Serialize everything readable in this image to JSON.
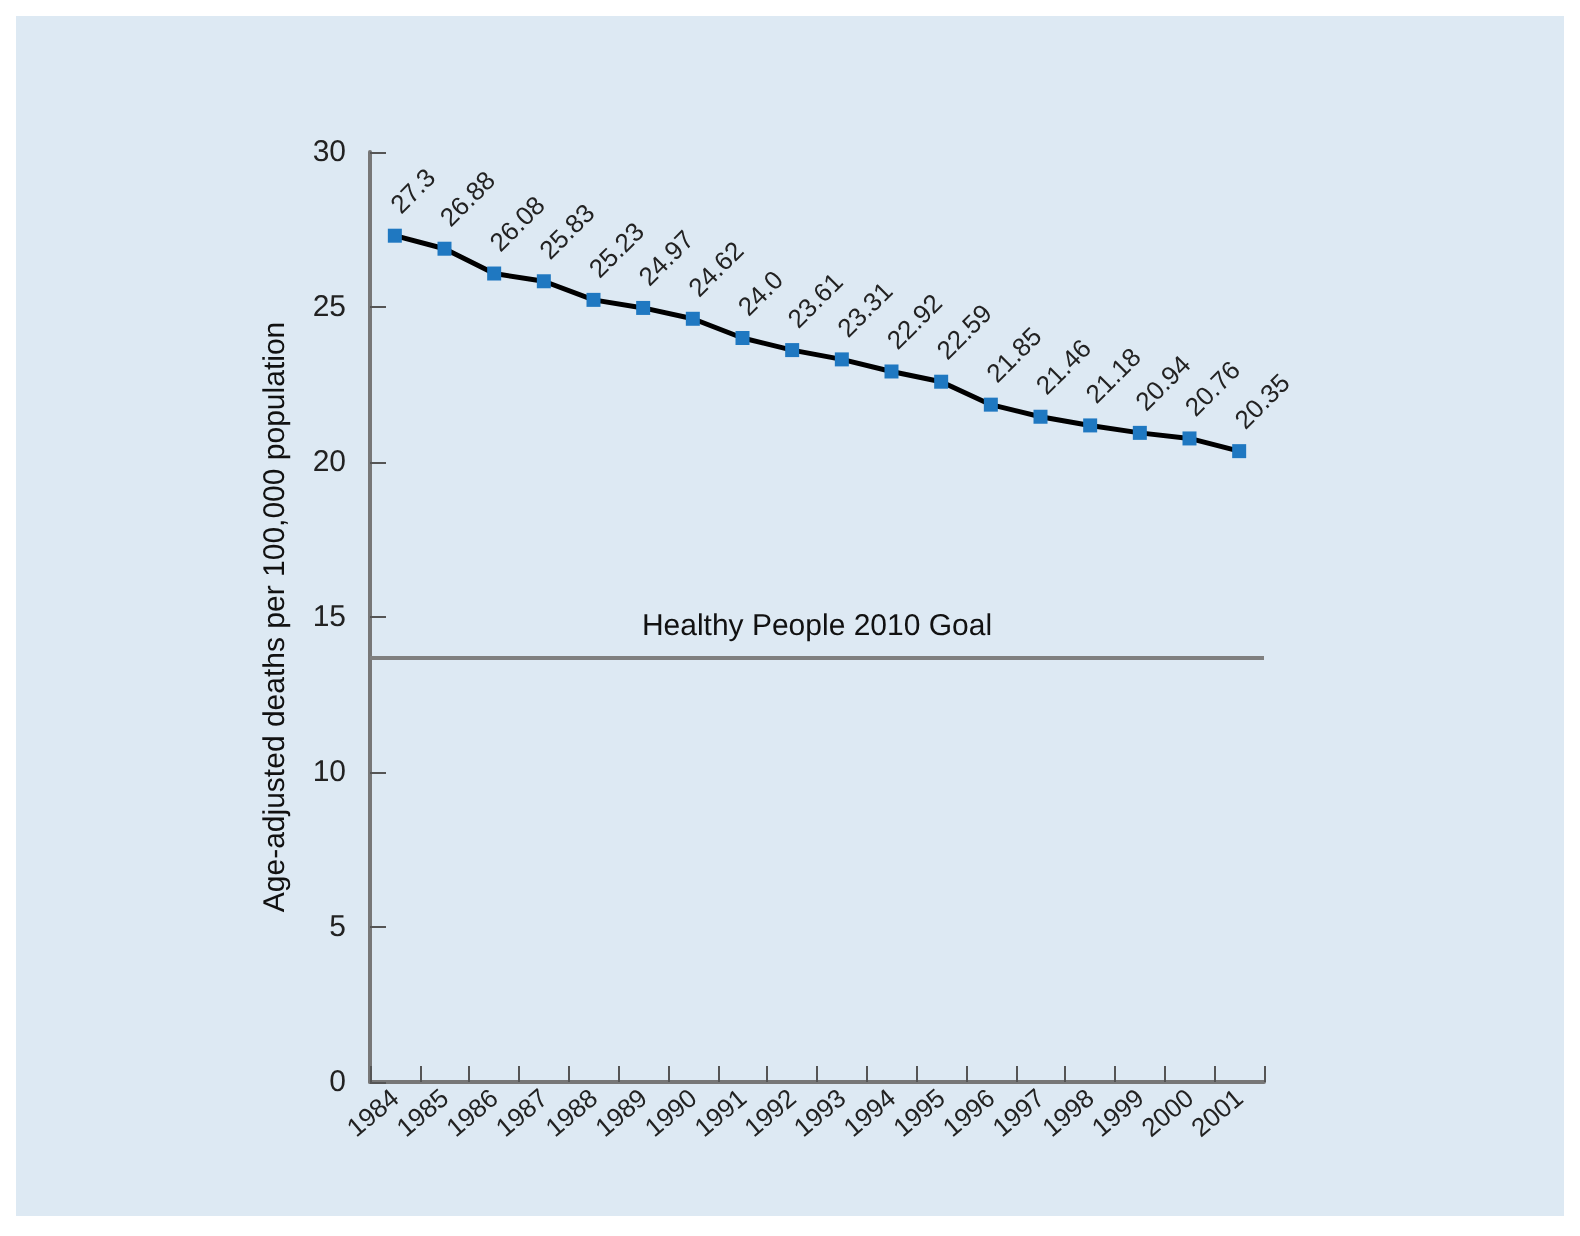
{
  "chart_data": {
    "type": "line",
    "ylabel": "Age-adjusted deaths per 100,000 population",
    "categories": [
      "1984",
      "1985",
      "1986",
      "1987",
      "1988",
      "1989",
      "1990",
      "1991",
      "1992",
      "1993",
      "1994",
      "1995",
      "1996",
      "1997",
      "1998",
      "1999",
      "2000",
      "2001"
    ],
    "series": [
      {
        "color": "#000000",
        "values": [
          27.3,
          26.88,
          26.08,
          25.83,
          25.23,
          24.97,
          24.62,
          24.0,
          23.61,
          23.31,
          22.92,
          22.59,
          21.85,
          21.46,
          21.18,
          20.94,
          20.76,
          20.35
        ],
        "value_labels": [
          "27.3",
          "26.88",
          "26.08",
          "25.83",
          "25.23",
          "24.97",
          "24.62",
          "24.0",
          "23.61",
          "23.31",
          "22.92",
          "22.59",
          "21.85",
          "21.46",
          "21.18",
          "20.94",
          "20.76",
          "20.35"
        ]
      }
    ],
    "ylim": [
      0,
      30
    ],
    "yticks": [
      0,
      5,
      10,
      15,
      20,
      25,
      30
    ],
    "grid": false,
    "marker": "square",
    "line_style": "solid",
    "ref_lines": [
      {
        "axis": "y",
        "value": 13.7,
        "label": "Healthy People 2010 Goal",
        "color": "#7f7f7f"
      }
    ]
  }
}
